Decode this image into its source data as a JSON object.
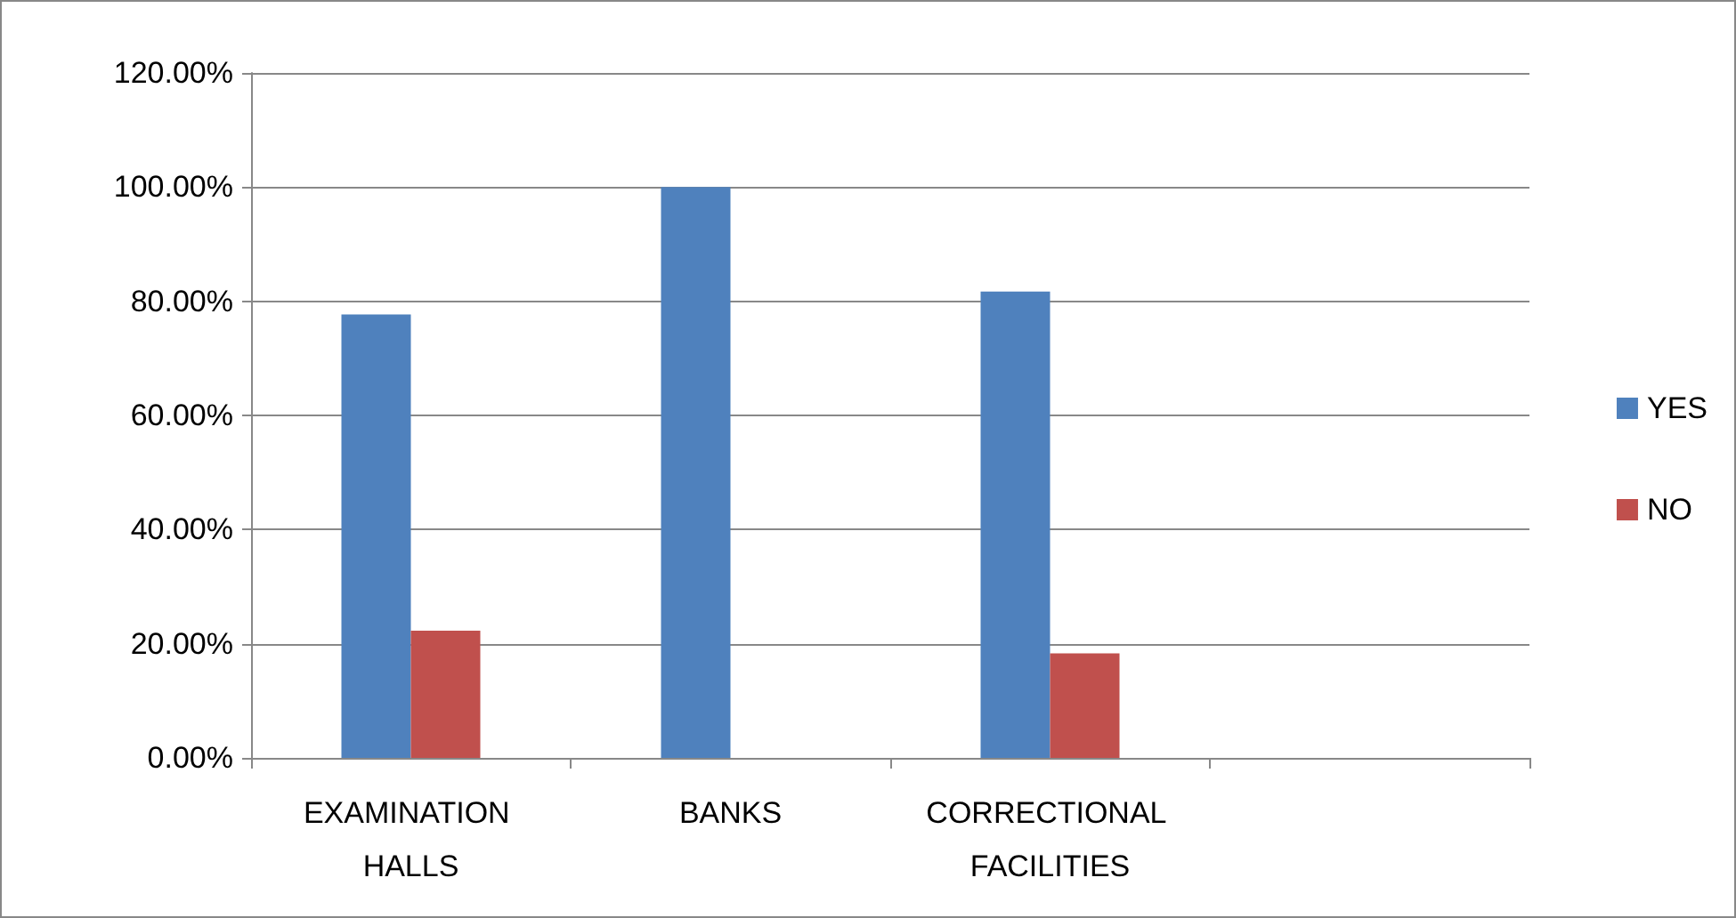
{
  "chart_data": {
    "type": "bar",
    "categories": [
      "EXAMINATION HALLS",
      "BANKS",
      "CORRECTIONAL FACILITIES",
      null
    ],
    "series": [
      {
        "name": "YES",
        "color": "#4f81bd",
        "values": [
          77.7,
          100,
          81.7,
          null
        ]
      },
      {
        "name": "NO",
        "color": "#c0504d",
        "values": [
          22.3,
          0,
          18.3,
          null
        ]
      }
    ],
    "ylim": [
      0,
      120
    ],
    "yticks": [
      {
        "value": 0,
        "label": "0.00%"
      },
      {
        "value": 20,
        "label": "20.00%"
      },
      {
        "value": 40,
        "label": "40.00%"
      },
      {
        "value": 60,
        "label": "60.00%"
      },
      {
        "value": 80,
        "label": "80.00%"
      },
      {
        "value": 100,
        "label": "100.00%"
      },
      {
        "value": 120,
        "label": "120.00%"
      }
    ],
    "grid": "y",
    "legend": "right"
  }
}
